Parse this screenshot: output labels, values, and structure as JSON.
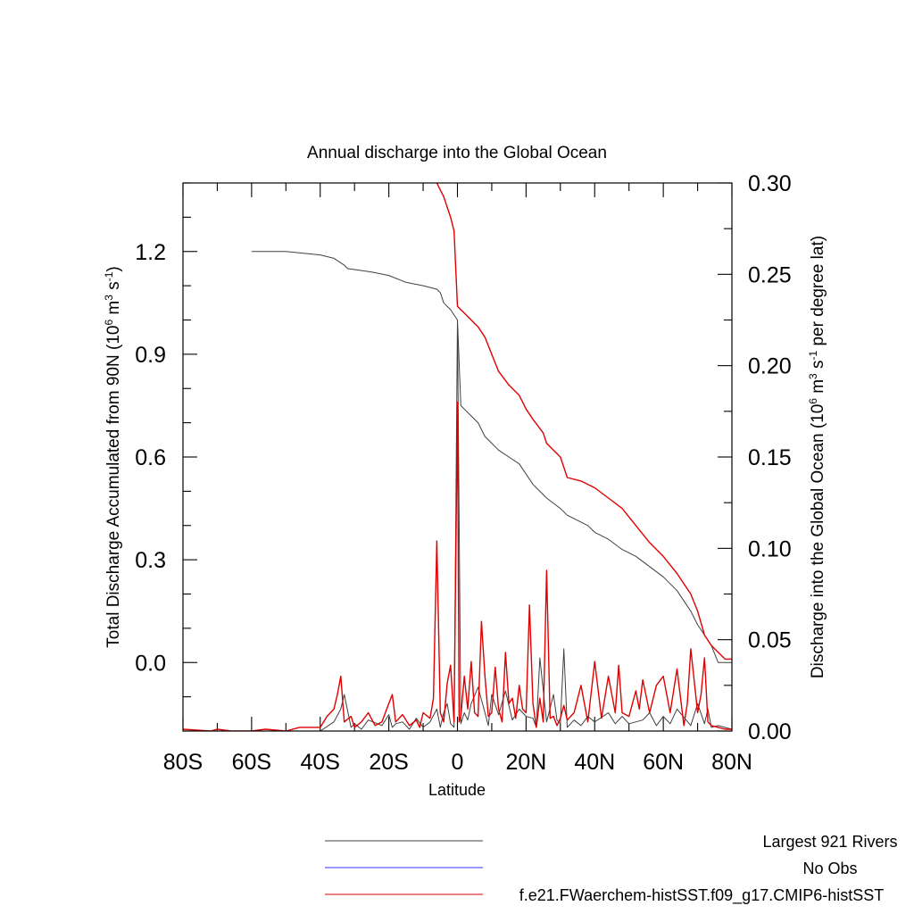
{
  "chart_data": {
    "type": "line",
    "title": "Annual discharge into the Global Ocean",
    "xlabel": "Latitude",
    "ylabel_left": "Total Discharge Accumulated from 90N (10",
    "ylabel_left_sup1": "6",
    "ylabel_left_mid": " m",
    "ylabel_left_sup2": "3",
    "ylabel_left_mid2": " s",
    "ylabel_left_sup3": "-1",
    "ylabel_left_end": ")",
    "ylabel_right": "Discharge into the Global Ocean (10",
    "ylabel_right_sup1": "6",
    "ylabel_right_mid": " m",
    "ylabel_right_sup2": "3",
    "ylabel_right_mid2": " s",
    "ylabel_right_sup3": "-1",
    "ylabel_right_end": " per degree lat)",
    "xlim": [
      -80,
      80
    ],
    "ylim_left": [
      -0.2,
      1.4
    ],
    "ylim_right": [
      0.0,
      0.3
    ],
    "x_ticks": [
      {
        "value": -80,
        "label": "80S"
      },
      {
        "value": -60,
        "label": "60S"
      },
      {
        "value": -40,
        "label": "40S"
      },
      {
        "value": -20,
        "label": "20S"
      },
      {
        "value": 0,
        "label": "0"
      },
      {
        "value": 20,
        "label": "20N"
      },
      {
        "value": 40,
        "label": "40N"
      },
      {
        "value": 60,
        "label": "60N"
      },
      {
        "value": 80,
        "label": "80N"
      }
    ],
    "y_left_ticks": [
      {
        "value": 0.0,
        "label": "0.0"
      },
      {
        "value": 0.3,
        "label": "0.3"
      },
      {
        "value": 0.6,
        "label": "0.6"
      },
      {
        "value": 0.9,
        "label": "0.9"
      },
      {
        "value": 1.2,
        "label": "1.2"
      }
    ],
    "y_right_ticks": [
      {
        "value": 0.0,
        "label": "0.00"
      },
      {
        "value": 0.05,
        "label": "0.05"
      },
      {
        "value": 0.1,
        "label": "0.10"
      },
      {
        "value": 0.15,
        "label": "0.15"
      },
      {
        "value": 0.2,
        "label": "0.20"
      },
      {
        "value": 0.25,
        "label": "0.25"
      },
      {
        "value": 0.3,
        "label": "0.30"
      }
    ],
    "accumulated_series": [
      {
        "name": "Largest 921 Rivers",
        "color": "#404040",
        "axis": "left",
        "x": [
          -60,
          -50,
          -40,
          -36,
          -33,
          -32,
          -25,
          -20,
          -15,
          -10,
          -6,
          -5,
          -4,
          -2,
          0,
          1,
          2,
          4,
          6,
          8,
          10,
          12,
          15,
          18,
          20,
          22,
          24,
          26,
          30,
          32,
          34,
          38,
          40,
          44,
          48,
          52,
          56,
          60,
          64,
          68,
          70,
          72,
          74,
          76,
          80
        ],
        "y": [
          1.2,
          1.2,
          1.19,
          1.18,
          1.16,
          1.15,
          1.14,
          1.13,
          1.11,
          1.1,
          1.09,
          1.08,
          1.05,
          1.03,
          1.0,
          0.75,
          0.74,
          0.72,
          0.7,
          0.66,
          0.64,
          0.62,
          0.6,
          0.58,
          0.55,
          0.52,
          0.5,
          0.48,
          0.45,
          0.43,
          0.42,
          0.4,
          0.38,
          0.36,
          0.33,
          0.31,
          0.28,
          0.25,
          0.21,
          0.15,
          0.11,
          0.08,
          0.05,
          0.0,
          0.0
        ]
      },
      {
        "name": "f.e21.FWaerchem-histSST.f09_g17.CMIP6-histSST",
        "color": "#e00000",
        "axis": "left",
        "x": [
          -6,
          -4,
          -2,
          -1,
          0,
          1,
          2,
          4,
          6,
          8,
          10,
          12,
          15,
          18,
          20,
          22,
          25,
          26,
          30,
          31,
          32,
          36,
          40,
          44,
          48,
          52,
          56,
          60,
          64,
          68,
          70,
          72,
          74,
          78,
          80
        ],
        "y": [
          1.4,
          1.36,
          1.3,
          1.26,
          1.04,
          1.03,
          1.02,
          1.0,
          0.98,
          0.95,
          0.9,
          0.85,
          0.81,
          0.78,
          0.74,
          0.71,
          0.67,
          0.64,
          0.6,
          0.57,
          0.54,
          0.53,
          0.51,
          0.48,
          0.45,
          0.4,
          0.35,
          0.31,
          0.26,
          0.2,
          0.15,
          0.08,
          0.05,
          0.01,
          0.01
        ]
      }
    ],
    "discharge_series": [
      {
        "name": "Largest 921 Rivers",
        "color": "#404040",
        "axis": "right",
        "x": [
          -80,
          -40,
          -36,
          -34,
          -33,
          -31,
          -30,
          -28,
          -26,
          -22,
          -20,
          -19,
          -18,
          -16,
          -14,
          -12,
          -10,
          -8,
          -6,
          -5,
          -4,
          -3,
          -2,
          -1,
          0,
          1,
          2,
          3,
          4,
          6,
          8,
          9,
          10,
          12,
          14,
          16,
          18,
          20,
          22,
          23,
          24,
          26,
          28,
          29,
          30,
          31,
          32,
          34,
          36,
          38,
          40,
          44,
          46,
          48,
          50,
          54,
          56,
          58,
          60,
          62,
          64,
          68,
          70,
          72,
          73,
          74,
          76,
          80
        ],
        "y": [
          0.0,
          0.0,
          0.005,
          0.012,
          0.02,
          0.002,
          0.004,
          0.001,
          0.006,
          0.003,
          0.009,
          0.002,
          0.004,
          0.005,
          0.001,
          0.007,
          0.002,
          0.005,
          0.012,
          0.002,
          0.01,
          0.015,
          0.004,
          0.002,
          0.225,
          0.004,
          0.01,
          0.006,
          0.015,
          0.024,
          0.01,
          0.003,
          0.02,
          0.009,
          0.022,
          0.006,
          0.012,
          0.008,
          0.007,
          0.002,
          0.04,
          0.005,
          0.02,
          0.006,
          0.004,
          0.045,
          0.002,
          0.006,
          0.003,
          0.008,
          0.005,
          0.01,
          0.004,
          0.008,
          0.004,
          0.006,
          0.01,
          0.003,
          0.008,
          0.004,
          0.012,
          0.003,
          0.015,
          0.004,
          0.012,
          0.002,
          0.003,
          0.001
        ]
      },
      {
        "name": "f.e21.FWaerchem-histSST.f09_g17.CMIP6-histSST",
        "color": "#e00000",
        "axis": "right",
        "x": [
          -80,
          -72,
          -70,
          -66,
          -60,
          -56,
          -50,
          -46,
          -40,
          -38,
          -36,
          -35,
          -34,
          -33,
          -31,
          -30,
          -28,
          -26,
          -24,
          -22,
          -20,
          -19,
          -18,
          -16,
          -14,
          -12,
          -11,
          -10,
          -8,
          -7,
          -6,
          -5,
          -4,
          -3,
          -2,
          -1,
          0,
          0.5,
          1,
          2,
          3,
          4,
          5,
          6,
          7,
          8,
          9,
          10,
          11,
          12,
          13,
          14,
          15,
          16,
          17,
          18,
          19,
          20,
          21,
          22,
          23,
          24,
          25,
          26,
          27,
          28,
          29,
          30,
          31,
          32,
          33,
          34,
          36,
          38,
          40,
          42,
          44,
          46,
          47,
          48,
          50,
          52,
          53,
          54,
          56,
          58,
          60,
          62,
          64,
          66,
          67,
          68,
          70,
          71,
          72,
          73,
          74,
          76,
          78,
          80
        ],
        "y": [
          0.001,
          0.0,
          0.001,
          0.0,
          0.0,
          0.001,
          0.0,
          0.002,
          0.002,
          0.008,
          0.012,
          0.02,
          0.03,
          0.005,
          0.008,
          0.002,
          0.005,
          0.01,
          0.003,
          0.005,
          0.015,
          0.02,
          0.005,
          0.009,
          0.003,
          0.006,
          0.002,
          0.01,
          0.007,
          0.018,
          0.104,
          0.01,
          0.005,
          0.026,
          0.036,
          0.005,
          0.18,
          0.005,
          0.008,
          0.03,
          0.012,
          0.038,
          0.01,
          0.008,
          0.06,
          0.03,
          0.008,
          0.01,
          0.035,
          0.012,
          0.005,
          0.043,
          0.015,
          0.018,
          0.007,
          0.025,
          0.012,
          0.01,
          0.069,
          0.015,
          0.002,
          0.018,
          0.005,
          0.088,
          0.007,
          0.008,
          0.003,
          0.007,
          0.014,
          0.006,
          0.008,
          0.01,
          0.025,
          0.005,
          0.038,
          0.007,
          0.03,
          0.01,
          0.036,
          0.01,
          0.008,
          0.022,
          0.012,
          0.028,
          0.01,
          0.025,
          0.03,
          0.01,
          0.034,
          0.003,
          0.015,
          0.045,
          0.01,
          0.02,
          0.04,
          0.005,
          0.003,
          0.002,
          0.001,
          0.001
        ]
      }
    ],
    "legend": [
      {
        "label": "Largest 921 Rivers",
        "color": "#404040"
      },
      {
        "label": "No Obs",
        "color": "#3333ff"
      },
      {
        "label": "f.e21.FWaerchem-histSST.f09_g17.CMIP6-histSST",
        "color": "#e00000"
      }
    ],
    "legend_position": "bottom",
    "grid": false
  }
}
